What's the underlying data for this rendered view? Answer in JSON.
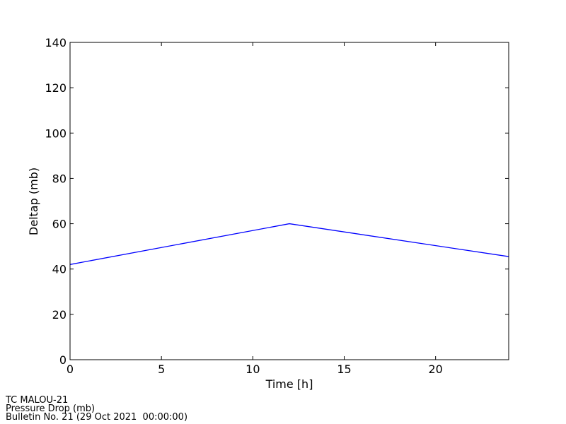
{
  "chart_data": {
    "type": "line",
    "x_label": "Time [h]",
    "y_label": "Deltap (mb)",
    "x": [
      0,
      12,
      24
    ],
    "series": [
      {
        "color": "#0000ff",
        "values": [
          42,
          60,
          45.5
        ]
      }
    ],
    "xlim": [
      0,
      24
    ],
    "xticks": [
      0,
      5,
      10,
      15,
      20
    ],
    "ylim": [
      0,
      140
    ],
    "yticks": [
      0,
      20,
      40,
      60,
      80,
      100,
      120,
      140
    ],
    "grid": false,
    "annotations": [
      "TC MALOU-21",
      "Pressure Drop (mb)",
      "Bulletin No. 21 (29 Oct 2021  00:00:00)"
    ]
  }
}
